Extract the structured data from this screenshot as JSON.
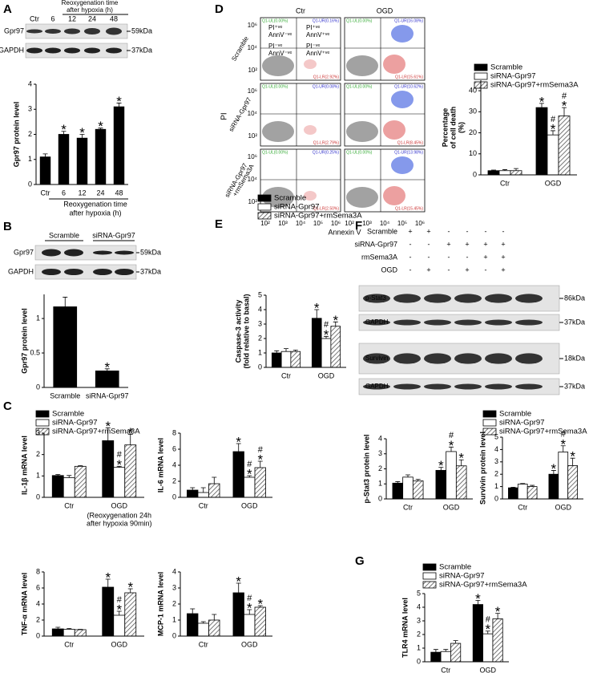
{
  "panel_labels": [
    "A",
    "B",
    "C",
    "D",
    "E",
    "F",
    "G"
  ],
  "blot_a": {
    "header": [
      "Reoxygenation time",
      "after hypoxia (h)"
    ],
    "lanes": [
      "Ctr",
      "6",
      "12",
      "24",
      "48"
    ],
    "rows": [
      {
        "protein": "Gpr97",
        "size": "59kDa"
      },
      {
        "protein": "GAPDH",
        "size": "37kDa"
      }
    ]
  },
  "blot_b": {
    "groups": [
      "Scramble",
      "siRNA-Gpr97"
    ],
    "rows": [
      {
        "protein": "Gpr97",
        "size": "59kDa"
      },
      {
        "protein": "GAPDH",
        "size": "37kDa"
      }
    ]
  },
  "blot_f": {
    "conditions": [
      {
        "name": "Scramble",
        "signs": [
          "+",
          "+",
          "-",
          "-",
          "-",
          "-"
        ]
      },
      {
        "name": "siRNA-Gpr97",
        "signs": [
          "-",
          "-",
          "+",
          "+",
          "+",
          "+"
        ]
      },
      {
        "name": "rmSema3A",
        "signs": [
          "-",
          "-",
          "-",
          "-",
          "+",
          "+"
        ]
      },
      {
        "name": "OGD",
        "signs": [
          "-",
          "+",
          "-",
          "+",
          "-",
          "+"
        ]
      }
    ],
    "rows": [
      {
        "protein": "p-Stat3",
        "size": "86kDa"
      },
      {
        "protein": "GAPDH",
        "size": "37kDa"
      },
      {
        "protein": "Survivin",
        "size": "18kDa"
      },
      {
        "protein": "GAPDH",
        "size": "37kDa"
      }
    ]
  },
  "flow": {
    "columns": [
      "Ctr",
      "OGD"
    ],
    "rows": [
      [
        "Scramble"
      ],
      [
        "siRNA-Gpr97"
      ],
      [
        "siRNA-Gpr97",
        "+rmSema3A"
      ]
    ],
    "y_axis": "PI",
    "x_axis": "Annexin V",
    "xticks": [
      "10²",
      "10³",
      "10⁴",
      "10⁵",
      "10⁶"
    ],
    "yticks": [
      "10⁶",
      "10⁴",
      "10²"
    ],
    "quadrant_names": [
      [
        "PI⁺ᵛᵉ",
        "AnnV⁻ᵛᵉ"
      ],
      [
        "PI⁺ᵛᵉ",
        "AnnV⁺ᵛᵉ"
      ],
      [
        "PI⁻ᵛᵉ",
        "AnnV⁻ᵛᵉ"
      ],
      [
        "PI⁻ᵛᵉ",
        "AnnV⁺ᵛᵉ"
      ]
    ],
    "gates": [
      [
        {
          "ul": "Q1-UL(0.00%)",
          "ur": "Q1-UR(0.16%)",
          "lr": "Q1-LR(2.92%)"
        },
        {
          "ul": "Q1-UL(0.00%)",
          "ur": "Q1-UR(16.08%)",
          "lr": "Q1-LR(15.61%)"
        }
      ],
      [
        {
          "ul": "Q1-UL(0.00%)",
          "ur": "Q1-UR(0.08%)",
          "lr": "Q1-LR(2.79%)"
        },
        {
          "ul": "Q1-UL(0.00%)",
          "ur": "Q1-UR(10.62%)",
          "lr": "Q1-LR(8.45%)"
        }
      ],
      [
        {
          "ul": "Q1-UL(0.00%)",
          "ur": "Q1-UR(0.25%)",
          "lr": "Q1-LR(2.50%)"
        },
        {
          "ul": "Q1-UL(0.00%)",
          "ur": "Q1-UR(13.98%)",
          "lr": "Q1-LR(15.45%)"
        }
      ]
    ]
  },
  "chart_data": [
    {
      "type": "bar",
      "categories": [
        "Ctr",
        "6",
        "12",
        "24",
        "48"
      ],
      "values": [
        1.1,
        2.0,
        1.85,
        2.2,
        3.1
      ],
      "errors": [
        0.12,
        0.12,
        0.15,
        0.05,
        0.15
      ],
      "significance": [
        null,
        [
          "*"
        ],
        [
          "*"
        ],
        [
          "*"
        ],
        [
          "*"
        ]
      ],
      "color": "#000000",
      "ylabel": "Gpr97 protein level",
      "xlabel": [
        "Reoxygenation time",
        "after hypoxia (h)"
      ],
      "ylim": [
        0,
        4
      ],
      "yticks": [
        0,
        1,
        2,
        3,
        4
      ]
    },
    {
      "type": "bar",
      "categories": [
        "Scramble",
        "siRNA-Gpr97"
      ],
      "values": [
        1.17,
        0.24
      ],
      "errors": [
        0.14,
        0.03
      ],
      "significance": [
        null,
        [
          "*"
        ]
      ],
      "color": "#000000",
      "ylabel": "Gpr97 protein level",
      "ylim": [
        0,
        1.35
      ],
      "yticks": [
        0,
        0.5,
        1
      ]
    },
    {
      "type": "bar",
      "ylabel": "IL-1β mRNA level",
      "categories": [
        "Ctr",
        "OGD"
      ],
      "note": [
        "(Reoxygenation 24h",
        "after hypoxia 90min)"
      ],
      "ylim": [
        0,
        3
      ],
      "yticks": [
        0,
        1,
        2,
        3
      ],
      "legend": true,
      "series": [
        {
          "name": "Scramble",
          "color": "#000000",
          "values": [
            1.02,
            2.65
          ],
          "errors": [
            0.05,
            0.6
          ],
          "significance": [
            null,
            [
              "*"
            ]
          ]
        },
        {
          "name": "siRNA-Gpr97",
          "color": "#ffffff",
          "values": [
            0.92,
            1.4
          ],
          "errors": [
            0.1,
            0.05
          ],
          "significance": [
            null,
            [
              "#",
              "*"
            ]
          ]
        },
        {
          "name": "siRNA-Gpr97+rmSema3A",
          "color": "#ffffff",
          "pattern": "hatch",
          "values": [
            1.45,
            2.45
          ],
          "errors": [
            0.03,
            0.5
          ],
          "significance": [
            null,
            [
              "*"
            ]
          ]
        }
      ]
    },
    {
      "type": "bar",
      "ylabel": "IL-6 mRNA level",
      "categories": [
        "Ctr",
        "OGD"
      ],
      "ylim": [
        0,
        8
      ],
      "yticks": [
        0,
        2,
        4,
        6,
        8
      ],
      "legend": false,
      "series": [
        {
          "name": "Scramble",
          "color": "#000000",
          "values": [
            0.9,
            5.7
          ],
          "errors": [
            0.3,
            1.0
          ],
          "significance": [
            null,
            [
              "*"
            ]
          ]
        },
        {
          "name": "siRNA-Gpr97",
          "color": "#ffffff",
          "values": [
            0.6,
            2.5
          ],
          "errors": [
            0.6,
            0.2
          ],
          "significance": [
            null,
            [
              "#",
              "*"
            ]
          ]
        },
        {
          "name": "siRNA-Gpr97+rmSema3A",
          "color": "#ffffff",
          "pattern": "hatch",
          "values": [
            1.7,
            3.7
          ],
          "errors": [
            0.8,
            0.8
          ],
          "significance": [
            null,
            [
              "#",
              "*"
            ]
          ]
        }
      ]
    },
    {
      "type": "bar",
      "ylabel": "TNF-α mRNA level",
      "categories": [
        "Ctr",
        "OGD"
      ],
      "ylim": [
        0,
        8
      ],
      "yticks": [
        0,
        2,
        4,
        6,
        8
      ],
      "legend": false,
      "series": [
        {
          "name": "Scramble",
          "color": "#000000",
          "values": [
            0.9,
            6.1
          ],
          "errors": [
            0.2,
            1.0
          ],
          "significance": [
            null,
            [
              "*"
            ]
          ]
        },
        {
          "name": "siRNA-Gpr97",
          "color": "#ffffff",
          "values": [
            0.85,
            2.6
          ],
          "errors": [
            0.1,
            0.5
          ],
          "significance": [
            null,
            [
              "#",
              "*"
            ]
          ]
        },
        {
          "name": "siRNA-Gpr97+rmSema3A",
          "color": "#ffffff",
          "pattern": "hatch",
          "values": [
            0.8,
            5.4
          ],
          "errors": [
            0.05,
            0.5
          ],
          "significance": [
            null,
            [
              "*"
            ]
          ]
        }
      ]
    },
    {
      "type": "bar",
      "ylabel": "MCP-1 mRNA level",
      "categories": [
        "Ctr",
        "OGD"
      ],
      "ylim": [
        0,
        4
      ],
      "yticks": [
        0,
        1,
        2,
        3,
        4
      ],
      "legend": false,
      "series": [
        {
          "name": "Scramble",
          "color": "#000000",
          "values": [
            1.4,
            2.7
          ],
          "errors": [
            0.3,
            0.6
          ],
          "significance": [
            null,
            [
              "*"
            ]
          ]
        },
        {
          "name": "siRNA-Gpr97",
          "color": "#ffffff",
          "values": [
            0.8,
            1.35
          ],
          "errors": [
            0.1,
            0.3
          ],
          "significance": [
            null,
            [
              "#",
              "*"
            ]
          ]
        },
        {
          "name": "siRNA-Gpr97+rmSema3A",
          "color": "#ffffff",
          "pattern": "hatch",
          "values": [
            1.0,
            1.8
          ],
          "errors": [
            0.35,
            0.1
          ],
          "significance": [
            null,
            [
              "*"
            ]
          ]
        }
      ]
    },
    {
      "type": "bar",
      "ylabel": "p-Stat3 protein level",
      "categories": [
        "Ctr",
        "OGD"
      ],
      "ylim": [
        0,
        4
      ],
      "yticks": [
        0,
        1,
        2,
        3,
        4
      ],
      "legend": false,
      "series": [
        {
          "name": "Scramble",
          "color": "#000000",
          "values": [
            1.05,
            1.9
          ],
          "errors": [
            0.1,
            0.2
          ],
          "significance": [
            null,
            [
              "*"
            ]
          ]
        },
        {
          "name": "siRNA-Gpr97",
          "color": "#ffffff",
          "values": [
            1.45,
            3.15
          ],
          "errors": [
            0.15,
            0.3
          ],
          "significance": [
            null,
            [
              "#",
              "*"
            ]
          ]
        },
        {
          "name": "siRNA-Gpr97+rmSema3A",
          "color": "#ffffff",
          "pattern": "hatch",
          "values": [
            1.2,
            2.2
          ],
          "errors": [
            0.1,
            0.4
          ],
          "significance": [
            null,
            [
              "*"
            ]
          ]
        }
      ]
    },
    {
      "type": "bar",
      "ylabel": "Survivin protein level",
      "categories": [
        "Ctr",
        "OGD"
      ],
      "ylim": [
        0,
        5
      ],
      "yticks": [
        0,
        1,
        2,
        3,
        4,
        5
      ],
      "legend": true,
      "series": [
        {
          "name": "Scramble",
          "color": "#000000",
          "values": [
            0.9,
            2.0
          ],
          "errors": [
            0.05,
            0.3
          ],
          "significance": [
            null,
            [
              "*"
            ]
          ]
        },
        {
          "name": "siRNA-Gpr97",
          "color": "#ffffff",
          "values": [
            1.2,
            3.8
          ],
          "errors": [
            0.05,
            0.5
          ],
          "significance": [
            null,
            [
              "#",
              "*"
            ]
          ]
        },
        {
          "name": "siRNA-Gpr97+rmSema3A",
          "color": "#ffffff",
          "pattern": "hatch",
          "values": [
            1.0,
            2.7
          ],
          "errors": [
            0.1,
            0.6
          ],
          "significance": [
            null,
            [
              "*"
            ]
          ]
        }
      ]
    },
    {
      "type": "bar",
      "ylabel": [
        "Caspase-3 activity",
        "(fold relative to basal)"
      ],
      "categories": [
        "Ctr",
        "OGD"
      ],
      "ylim": [
        0,
        5
      ],
      "yticks": [
        0,
        1,
        2,
        3,
        4,
        5
      ],
      "legend": true,
      "series": [
        {
          "name": "Scramble",
          "color": "#000000",
          "values": [
            1.0,
            3.4
          ],
          "errors": [
            0.15,
            0.6
          ],
          "significance": [
            null,
            [
              "*"
            ]
          ]
        },
        {
          "name": "siRNA-Gpr97",
          "color": "#ffffff",
          "values": [
            1.1,
            2.0
          ],
          "errors": [
            0.2,
            0.15
          ],
          "significance": [
            null,
            [
              "#",
              "*"
            ]
          ]
        },
        {
          "name": "siRNA-Gpr97+rmSema3A",
          "color": "#ffffff",
          "pattern": "hatch",
          "values": [
            1.1,
            2.85
          ],
          "errors": [
            0.1,
            0.3
          ],
          "significance": [
            null,
            [
              "*"
            ]
          ]
        }
      ]
    },
    {
      "type": "bar",
      "ylabel": [
        "Percentage",
        "of cell death",
        "(%)"
      ],
      "categories": [
        "Ctr",
        "OGD"
      ],
      "ylim": [
        0,
        45
      ],
      "yticks": [
        0,
        10,
        20,
        30,
        40
      ],
      "legend": true,
      "series": [
        {
          "name": "Scramble",
          "color": "#000000",
          "values": [
            2,
            32
          ],
          "errors": [
            0.3,
            2
          ],
          "significance": [
            null,
            [
              "*"
            ]
          ]
        },
        {
          "name": "siRNA-Gpr97",
          "color": "#ffffff",
          "values": [
            2,
            19
          ],
          "errors": [
            0.5,
            2
          ],
          "significance": [
            null,
            [
              "#",
              "*"
            ]
          ]
        },
        {
          "name": "siRNA-Gpr97+rmSema3A",
          "color": "#ffffff",
          "pattern": "hatch",
          "values": [
            2,
            28
          ],
          "errors": [
            1,
            4
          ],
          "significance": [
            null,
            [
              "#",
              "*"
            ]
          ]
        }
      ]
    },
    {
      "type": "bar",
      "ylabel": "TLR4 mRNA level",
      "categories": [
        "Ctr",
        "OGD"
      ],
      "ylim": [
        0,
        5
      ],
      "yticks": [
        0,
        1,
        2,
        3,
        4,
        5
      ],
      "legend": true,
      "series": [
        {
          "name": "Scramble",
          "color": "#000000",
          "values": [
            0.7,
            4.2
          ],
          "errors": [
            0.2,
            0.3
          ],
          "significance": [
            null,
            [
              "*"
            ]
          ]
        },
        {
          "name": "siRNA-Gpr97",
          "color": "#ffffff",
          "values": [
            0.75,
            2.05
          ],
          "errors": [
            0.15,
            0.2
          ],
          "significance": [
            null,
            [
              "#",
              "*"
            ]
          ]
        },
        {
          "name": "siRNA-Gpr97+rmSema3A",
          "color": "#ffffff",
          "pattern": "hatch",
          "values": [
            1.35,
            3.15
          ],
          "errors": [
            0.2,
            0.4
          ],
          "significance": [
            null,
            [
              "*"
            ]
          ]
        }
      ]
    }
  ]
}
